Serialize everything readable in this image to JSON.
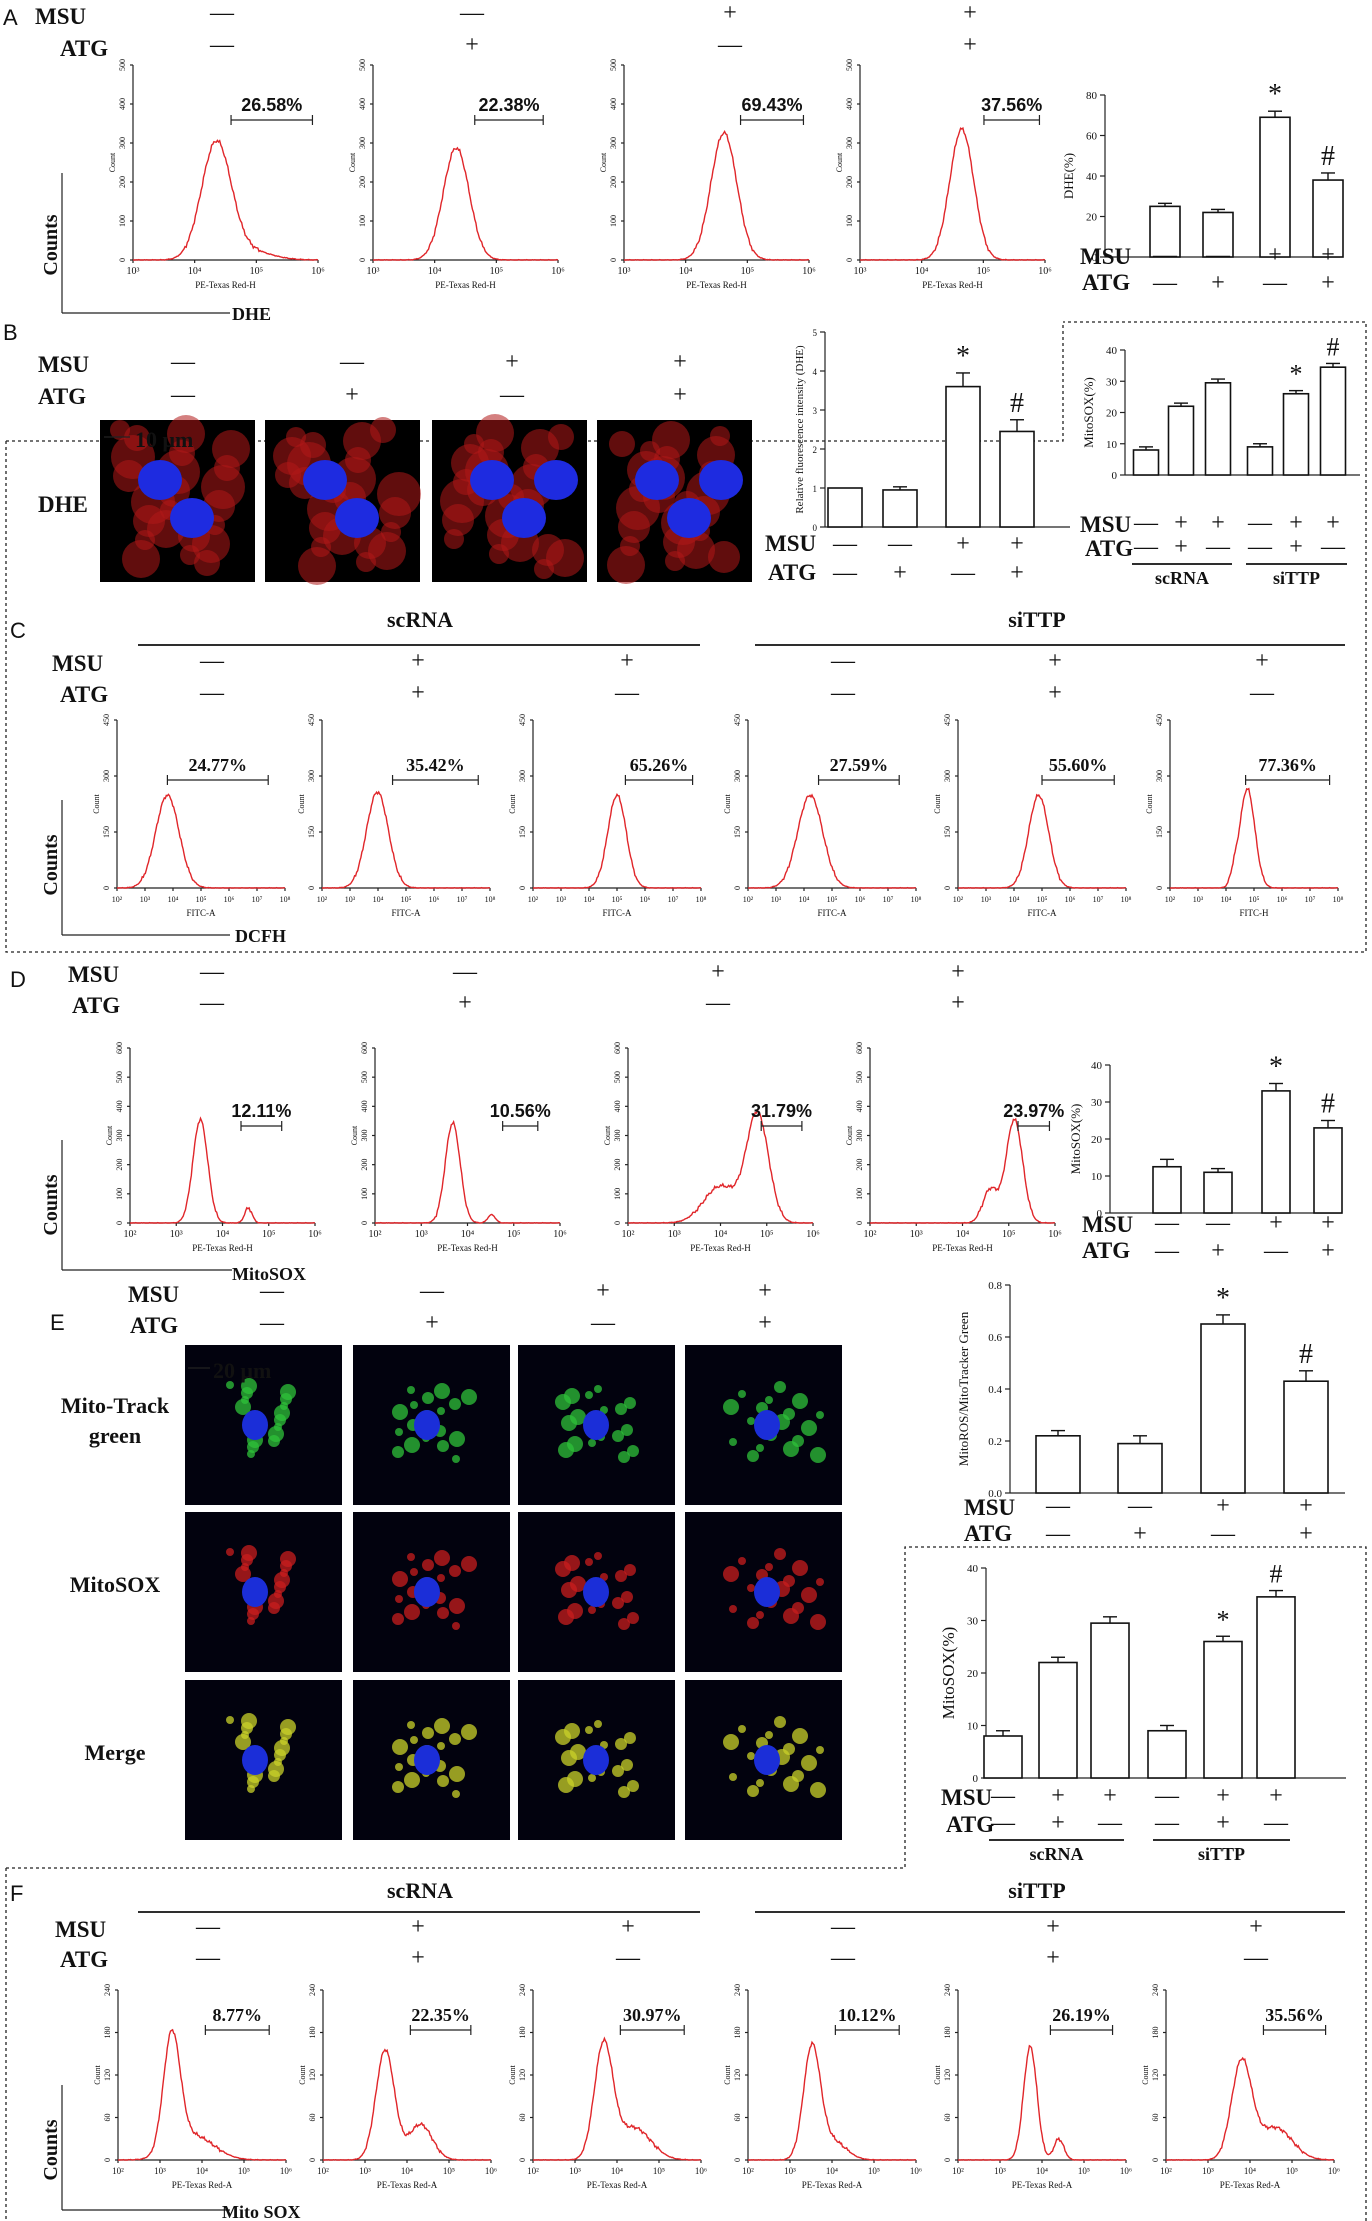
{
  "panel_labels": [
    "A",
    "B",
    "C",
    "D",
    "E",
    "F"
  ],
  "labels": {
    "msu": "MSU",
    "atg": "ATG",
    "counts": "Counts",
    "plus": "+",
    "minus": "—",
    "scrna": "scRNA",
    "sittp": "siTTP",
    "star": "*",
    "hash": "#"
  },
  "panelA": {
    "axis_label": "DHE",
    "x_label": "PE-Texas Red-H",
    "y_label": "Count",
    "y_ticks": [
      "0",
      "100",
      "200",
      "300",
      "400",
      "500"
    ],
    "x_ticks": [
      "10³",
      "10⁴",
      "10⁵",
      "10⁶"
    ],
    "treatments": [
      {
        "msu": "—",
        "atg": "—"
      },
      {
        "msu": "—",
        "atg": "+"
      },
      {
        "msu": "+",
        "atg": "—"
      },
      {
        "msu": "+",
        "atg": "+"
      }
    ],
    "percentages": [
      "26.58%",
      "22.38%",
      "69.43%",
      "37.56%"
    ],
    "bar_chart": {
      "ylabel": "DHE(%)",
      "y_ticks": [
        "0",
        "20",
        "40",
        "60",
        "80"
      ]
    }
  },
  "panelB": {
    "row_label": "DHE",
    "scale_bar": "10 μm",
    "bar_chart": {
      "ylabel": "Relative fluorescence intensity (DHE)",
      "y_ticks": [
        "0",
        "1",
        "2",
        "3",
        "4",
        "5"
      ]
    },
    "mito_chart": {
      "ylabel": "MitoSOX(%)",
      "y_ticks": [
        "0",
        "10",
        "20",
        "30",
        "40"
      ]
    }
  },
  "panelC": {
    "axis_label": "DCFH",
    "x_label": "FITC-A",
    "x_label_last": "FITC-H",
    "y_label": "Count",
    "y_ticks": [
      "0",
      "150",
      "300",
      "450"
    ],
    "x_ticks": [
      "10²",
      "10³",
      "10⁴",
      "10⁵",
      "10⁶",
      "10⁷",
      "10⁸"
    ],
    "percentages": [
      "24.77%",
      "35.42%",
      "65.26%",
      "27.59%",
      "55.60%",
      "77.36%"
    ]
  },
  "panelD": {
    "axis_label": "MitoSOX",
    "x_label": "PE-Texas Red-H",
    "y_label": "Count",
    "y_ticks": [
      "0",
      "100",
      "200",
      "300",
      "400",
      "500",
      "600"
    ],
    "x_ticks": [
      "10²",
      "10³",
      "10⁴",
      "10⁵",
      "10⁶"
    ],
    "percentages": [
      "12.11%",
      "10.56%",
      "31.79%",
      "23.97%"
    ],
    "bar_chart": {
      "ylabel": "MitoSOX(%)",
      "y_ticks": [
        "0",
        "10",
        "20",
        "30",
        "40"
      ]
    }
  },
  "panelE": {
    "scale_bar": "20 μm",
    "row_labels": [
      "Mito-Track green",
      "MitoSOX",
      "Merge"
    ],
    "bar_chart": {
      "ylabel": "MitoROS/MitoTracker Green",
      "y_ticks": [
        "0.0",
        "0.2",
        "0.4",
        "0.6",
        "0.8"
      ]
    },
    "mito_chart": {
      "ylabel": "MitoSOX(%)",
      "y_ticks": [
        "0",
        "10",
        "20",
        "30",
        "40"
      ]
    }
  },
  "panelF": {
    "axis_label": "Mito SOX",
    "x_label": "PE-Texas Red-A",
    "y_label": "Count",
    "y_ticks": [
      "0",
      "60",
      "120",
      "180",
      "240"
    ],
    "x_ticks": [
      "10²",
      "10³",
      "10⁴",
      "10⁵",
      "10⁶"
    ],
    "percentages": [
      "8.77%",
      "22.35%",
      "30.97%",
      "10.12%",
      "26.19%",
      "35.56%"
    ]
  },
  "treatments6": [
    {
      "msu": "—",
      "atg": "—"
    },
    {
      "msu": "+",
      "atg": "+"
    },
    {
      "msu": "+",
      "atg": "—"
    },
    {
      "msu": "—",
      "atg": "—"
    },
    {
      "msu": "+",
      "atg": "+"
    },
    {
      "msu": "+",
      "atg": "—"
    }
  ],
  "chart_data": [
    {
      "type": "bar",
      "panel": "A",
      "categories": [
        "MSU− ATG−",
        "MSU− ATG+",
        "MSU+ ATG−",
        "MSU+ ATG+"
      ],
      "values": [
        25,
        22,
        69,
        38
      ],
      "errors": [
        1.5,
        1.5,
        3,
        3.5
      ],
      "ylabel": "DHE(%)",
      "ylim": [
        0,
        80
      ],
      "annotations": [
        "",
        "",
        "*",
        "#"
      ]
    },
    {
      "type": "bar",
      "panel": "B",
      "categories": [
        "MSU− ATG−",
        "MSU− ATG+",
        "MSU+ ATG−",
        "MSU+ ATG+"
      ],
      "values": [
        1.0,
        0.95,
        3.6,
        2.45
      ],
      "errors": [
        0,
        0.08,
        0.35,
        0.3
      ],
      "ylabel": "Relative fluorescence intensity (DHE)",
      "ylim": [
        0,
        5
      ],
      "annotations": [
        "",
        "",
        "*",
        "#"
      ]
    },
    {
      "type": "bar",
      "panel": "B-right",
      "categories": [
        "scRNA MSU− ATG−",
        "scRNA MSU+ ATG+",
        "scRNA MSU+ ATG−",
        "siTTP MSU− ATG−",
        "siTTP MSU+ ATG+",
        "siTTP MSU+ ATG−"
      ],
      "values": [
        8,
        22,
        29.5,
        9,
        26,
        34.5
      ],
      "errors": [
        1,
        1,
        1.2,
        1,
        1,
        1.2
      ],
      "ylabel": "MitoSOX(%)",
      "ylim": [
        0,
        40
      ],
      "annotations": [
        "",
        "",
        "",
        "",
        "*",
        "#"
      ]
    },
    {
      "type": "bar",
      "panel": "D",
      "categories": [
        "MSU− ATG−",
        "MSU− ATG+",
        "MSU+ ATG−",
        "MSU+ ATG+"
      ],
      "values": [
        12.5,
        11,
        33,
        23
      ],
      "errors": [
        2,
        1,
        2,
        2
      ],
      "ylabel": "MitoSOX(%)",
      "ylim": [
        0,
        40
      ],
      "annotations": [
        "",
        "",
        "*",
        "#"
      ]
    },
    {
      "type": "bar",
      "panel": "E",
      "categories": [
        "MSU− ATG−",
        "MSU− ATG+",
        "MSU+ ATG−",
        "MSU+ ATG+"
      ],
      "values": [
        0.22,
        0.19,
        0.65,
        0.43
      ],
      "errors": [
        0.02,
        0.03,
        0.035,
        0.04
      ],
      "ylabel": "MitoROS/MitoTracker Green",
      "ylim": [
        0,
        0.8
      ],
      "annotations": [
        "",
        "",
        "*",
        "#"
      ]
    },
    {
      "type": "bar",
      "panel": "E-right",
      "categories": [
        "scRNA MSU− ATG−",
        "scRNA MSU+ ATG+",
        "scRNA MSU+ ATG−",
        "siTTP MSU− ATG−",
        "siTTP MSU+ ATG+",
        "siTTP MSU+ ATG−"
      ],
      "values": [
        8,
        22,
        29.5,
        9,
        26,
        34.5
      ],
      "errors": [
        1,
        1,
        1.2,
        1,
        1,
        1.2
      ],
      "ylabel": "MitoSOX(%)",
      "ylim": [
        0,
        40
      ],
      "annotations": [
        "",
        "",
        "",
        "",
        "*",
        "#"
      ]
    }
  ]
}
